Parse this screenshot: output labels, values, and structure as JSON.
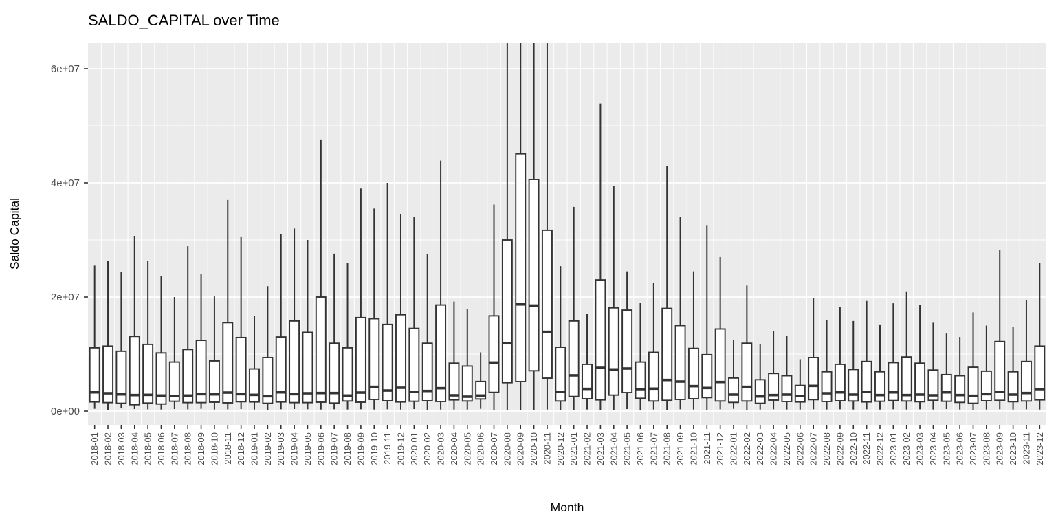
{
  "title": "SALDO_CAPITAL over Time",
  "axes": {
    "x_label": "Month",
    "y_label": "Saldo Capital",
    "y_tick_labels": [
      "0e+00",
      "2e+07",
      "4e+07",
      "6e+07"
    ]
  },
  "colors": {
    "panel_background": "#EBEBEB",
    "grid_line": "#FFFFFF",
    "box_border": "#333333",
    "box_fill": "#FFFFFF",
    "tick_text": "#4D4D4D",
    "axis_text": "#000000"
  },
  "chart_data": {
    "type": "boxplot",
    "title": "SALDO_CAPITAL over Time",
    "xlabel": "Month",
    "ylabel": "Saldo Capital",
    "ylim": [
      -2400000,
      64600000
    ],
    "y_major_breaks": [
      0,
      20000000,
      40000000,
      60000000
    ],
    "y_minor_breaks": [
      10000000,
      30000000,
      50000000
    ],
    "y_tick_labels": [
      "0e+00",
      "2e+07",
      "4e+07",
      "6e+07"
    ],
    "grid": true,
    "legend": "none",
    "box_stat_order": [
      "whisker_low",
      "q1",
      "median",
      "q3",
      "whisker_high"
    ],
    "clipped_whiskers": [
      "2020-08",
      "2020-09",
      "2020-10",
      "2020-11"
    ],
    "categories": [
      "2018-01",
      "2018-02",
      "2018-03",
      "2018-04",
      "2018-05",
      "2018-06",
      "2018-07",
      "2018-08",
      "2018-09",
      "2018-10",
      "2018-11",
      "2018-12",
      "2019-01",
      "2019-02",
      "2019-03",
      "2019-04",
      "2019-05",
      "2019-06",
      "2019-07",
      "2019-08",
      "2019-09",
      "2019-10",
      "2019-11",
      "2019-12",
      "2020-01",
      "2020-02",
      "2020-03",
      "2020-04",
      "2020-05",
      "2020-06",
      "2020-07",
      "2020-08",
      "2020-09",
      "2020-10",
      "2020-11",
      "2020-12",
      "2021-01",
      "2021-02",
      "2021-03",
      "2021-04",
      "2021-05",
      "2021-06",
      "2021-07",
      "2021-08",
      "2021-09",
      "2021-10",
      "2021-11",
      "2021-12",
      "2022-01",
      "2022-02",
      "2022-03",
      "2022-04",
      "2022-05",
      "2022-06",
      "2022-07",
      "2022-08",
      "2022-09",
      "2022-10",
      "2022-11",
      "2022-12",
      "2023-01",
      "2023-02",
      "2023-03",
      "2023-04",
      "2023-05",
      "2023-06",
      "2023-07",
      "2023-08",
      "2023-09",
      "2023-10",
      "2023-11",
      "2023-12"
    ],
    "boxes": [
      [
        400000,
        1610000,
        3290000,
        11100000,
        25500000
      ],
      [
        200000,
        1490000,
        3130000,
        11400000,
        26300000
      ],
      [
        480000,
        1370000,
        2930000,
        10500000,
        24400000
      ],
      [
        360000,
        1120000,
        2810000,
        13100000,
        30700000
      ],
      [
        320000,
        1410000,
        2850000,
        11700000,
        26300000
      ],
      [
        280000,
        1240000,
        2730000,
        10200000,
        23700000
      ],
      [
        360000,
        1730000,
        2650000,
        8600000,
        20000000
      ],
      [
        320000,
        1490000,
        2730000,
        10800000,
        28900000
      ],
      [
        400000,
        1490000,
        2970000,
        12400000,
        24000000
      ],
      [
        280000,
        1570000,
        2930000,
        8800000,
        20100000
      ],
      [
        320000,
        1450000,
        3250000,
        15500000,
        37000000
      ],
      [
        360000,
        1650000,
        2970000,
        12900000,
        30500000
      ],
      [
        280000,
        1610000,
        2850000,
        7400000,
        16700000
      ],
      [
        240000,
        1370000,
        2610000,
        9400000,
        21900000
      ],
      [
        320000,
        1610000,
        3290000,
        13000000,
        31000000
      ],
      [
        360000,
        1490000,
        2970000,
        15800000,
        32000000
      ],
      [
        320000,
        1490000,
        3130000,
        13800000,
        30000000
      ],
      [
        280000,
        1570000,
        3170000,
        20000000,
        47600000
      ],
      [
        320000,
        1410000,
        3170000,
        11900000,
        27600000
      ],
      [
        280000,
        1770000,
        2730000,
        11100000,
        26000000
      ],
      [
        320000,
        1570000,
        3250000,
        16400000,
        39000000
      ],
      [
        280000,
        2050000,
        4260000,
        16200000,
        35500000
      ],
      [
        320000,
        1810000,
        3610000,
        15200000,
        40000000
      ],
      [
        280000,
        1610000,
        4100000,
        16900000,
        34500000
      ],
      [
        360000,
        1730000,
        3370000,
        14500000,
        34000000
      ],
      [
        240000,
        1810000,
        3530000,
        11900000,
        27500000
      ],
      [
        280000,
        1690000,
        4020000,
        18600000,
        43900000
      ],
      [
        280000,
        1970000,
        2770000,
        8400000,
        19200000
      ],
      [
        280000,
        1770000,
        2530000,
        7900000,
        17900000
      ],
      [
        400000,
        2130000,
        2730000,
        5200000,
        10300000
      ],
      [
        240000,
        3290000,
        8510000,
        16700000,
        36200000
      ],
      [
        240000,
        4980000,
        11900000,
        30000000,
        64500000
      ],
      [
        240000,
        5180000,
        18700000,
        45100000,
        64500000
      ],
      [
        240000,
        7070000,
        18500000,
        40600000,
        64500000
      ],
      [
        280000,
        5780000,
        13900000,
        31700000,
        64500000
      ],
      [
        240000,
        1770000,
        3370000,
        11200000,
        25400000
      ],
      [
        240000,
        2570000,
        6270000,
        15800000,
        35800000
      ],
      [
        280000,
        2170000,
        3900000,
        8200000,
        17000000
      ],
      [
        240000,
        1970000,
        7590000,
        23000000,
        53900000
      ],
      [
        240000,
        2810000,
        7310000,
        18100000,
        39500000
      ],
      [
        360000,
        3250000,
        7470000,
        17700000,
        24500000
      ],
      [
        240000,
        2250000,
        3860000,
        8600000,
        19000000
      ],
      [
        280000,
        1770000,
        3940000,
        10300000,
        22500000
      ],
      [
        240000,
        1890000,
        5460000,
        18000000,
        43000000
      ],
      [
        320000,
        2050000,
        5180000,
        15000000,
        34000000
      ],
      [
        280000,
        2170000,
        4380000,
        11000000,
        24500000
      ],
      [
        240000,
        2370000,
        4060000,
        9900000,
        32500000
      ],
      [
        320000,
        1770000,
        5100000,
        14400000,
        27000000
      ],
      [
        400000,
        1530000,
        2890000,
        5800000,
        12500000
      ],
      [
        240000,
        1770000,
        4260000,
        11900000,
        22000000
      ],
      [
        280000,
        1370000,
        2570000,
        5500000,
        11800000
      ],
      [
        320000,
        1930000,
        2810000,
        6600000,
        14000000
      ],
      [
        280000,
        1690000,
        2890000,
        6200000,
        13200000
      ],
      [
        280000,
        1610000,
        2650000,
        4500000,
        9100000
      ],
      [
        320000,
        2010000,
        4420000,
        9400000,
        19800000
      ],
      [
        280000,
        1690000,
        3130000,
        6900000,
        16000000
      ],
      [
        320000,
        1810000,
        3290000,
        8200000,
        18200000
      ],
      [
        280000,
        1770000,
        2890000,
        7300000,
        15800000
      ],
      [
        320000,
        1610000,
        3370000,
        8700000,
        19300000
      ],
      [
        280000,
        1730000,
        2810000,
        6900000,
        15200000
      ],
      [
        320000,
        1850000,
        3290000,
        8500000,
        18900000
      ],
      [
        280000,
        1770000,
        2810000,
        9500000,
        21000000
      ],
      [
        320000,
        1650000,
        2890000,
        8400000,
        18600000
      ],
      [
        280000,
        1890000,
        2770000,
        7200000,
        15500000
      ],
      [
        360000,
        1730000,
        3290000,
        6400000,
        13600000
      ],
      [
        280000,
        1530000,
        2810000,
        6200000,
        13000000
      ],
      [
        160000,
        1370000,
        2690000,
        7700000,
        17300000
      ],
      [
        280000,
        1810000,
        2970000,
        7000000,
        15000000
      ],
      [
        320000,
        1890000,
        3370000,
        12200000,
        28200000
      ],
      [
        280000,
        1650000,
        2890000,
        6900000,
        14800000
      ],
      [
        320000,
        1770000,
        3170000,
        8700000,
        19500000
      ],
      [
        280000,
        1970000,
        3860000,
        11400000,
        25900000
      ]
    ]
  }
}
